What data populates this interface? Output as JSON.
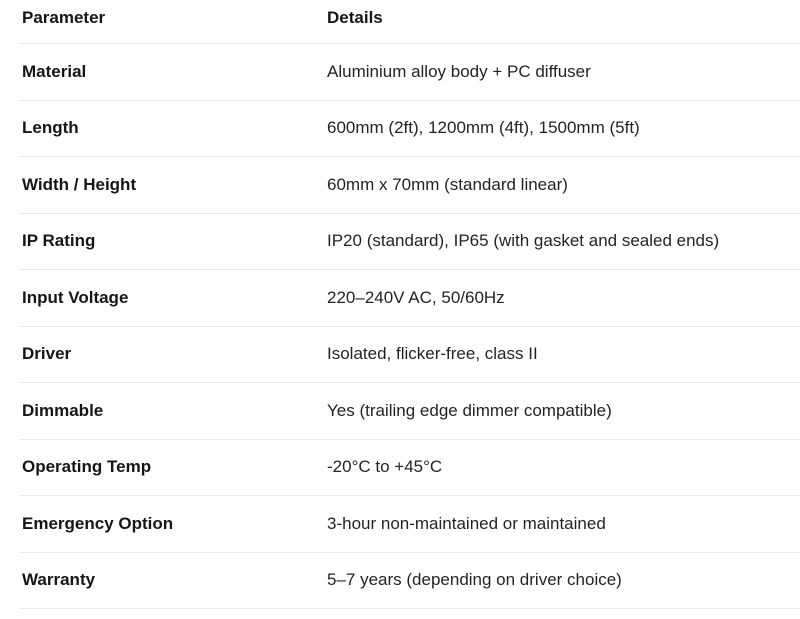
{
  "colors": {
    "background": "#ffffff",
    "text": "#1b1d21",
    "label_text": "#141619",
    "divider": "#e7e8e9"
  },
  "table": {
    "columns": [
      "Parameter",
      "Details"
    ],
    "rows": [
      {
        "parameter": "Material",
        "details": "Aluminium alloy body + PC diffuser"
      },
      {
        "parameter": "Length",
        "details": "600mm (2ft), 1200mm (4ft), 1500mm (5ft)"
      },
      {
        "parameter": "Width / Height",
        "details": "60mm x 70mm (standard linear)"
      },
      {
        "parameter": "IP Rating",
        "details": "IP20 (standard), IP65 (with gasket and sealed ends)"
      },
      {
        "parameter": "Input Voltage",
        "details": "220–240V AC, 50/60Hz"
      },
      {
        "parameter": "Driver",
        "details": "Isolated, flicker-free, class II"
      },
      {
        "parameter": "Dimmable",
        "details": "Yes (trailing edge dimmer compatible)"
      },
      {
        "parameter": "Operating Temp",
        "details": "-20°C to +45°C"
      },
      {
        "parameter": "Emergency Option",
        "details": "3-hour non-maintained or maintained"
      },
      {
        "parameter": "Warranty",
        "details": "5–7 years (depending on driver choice)"
      }
    ]
  }
}
